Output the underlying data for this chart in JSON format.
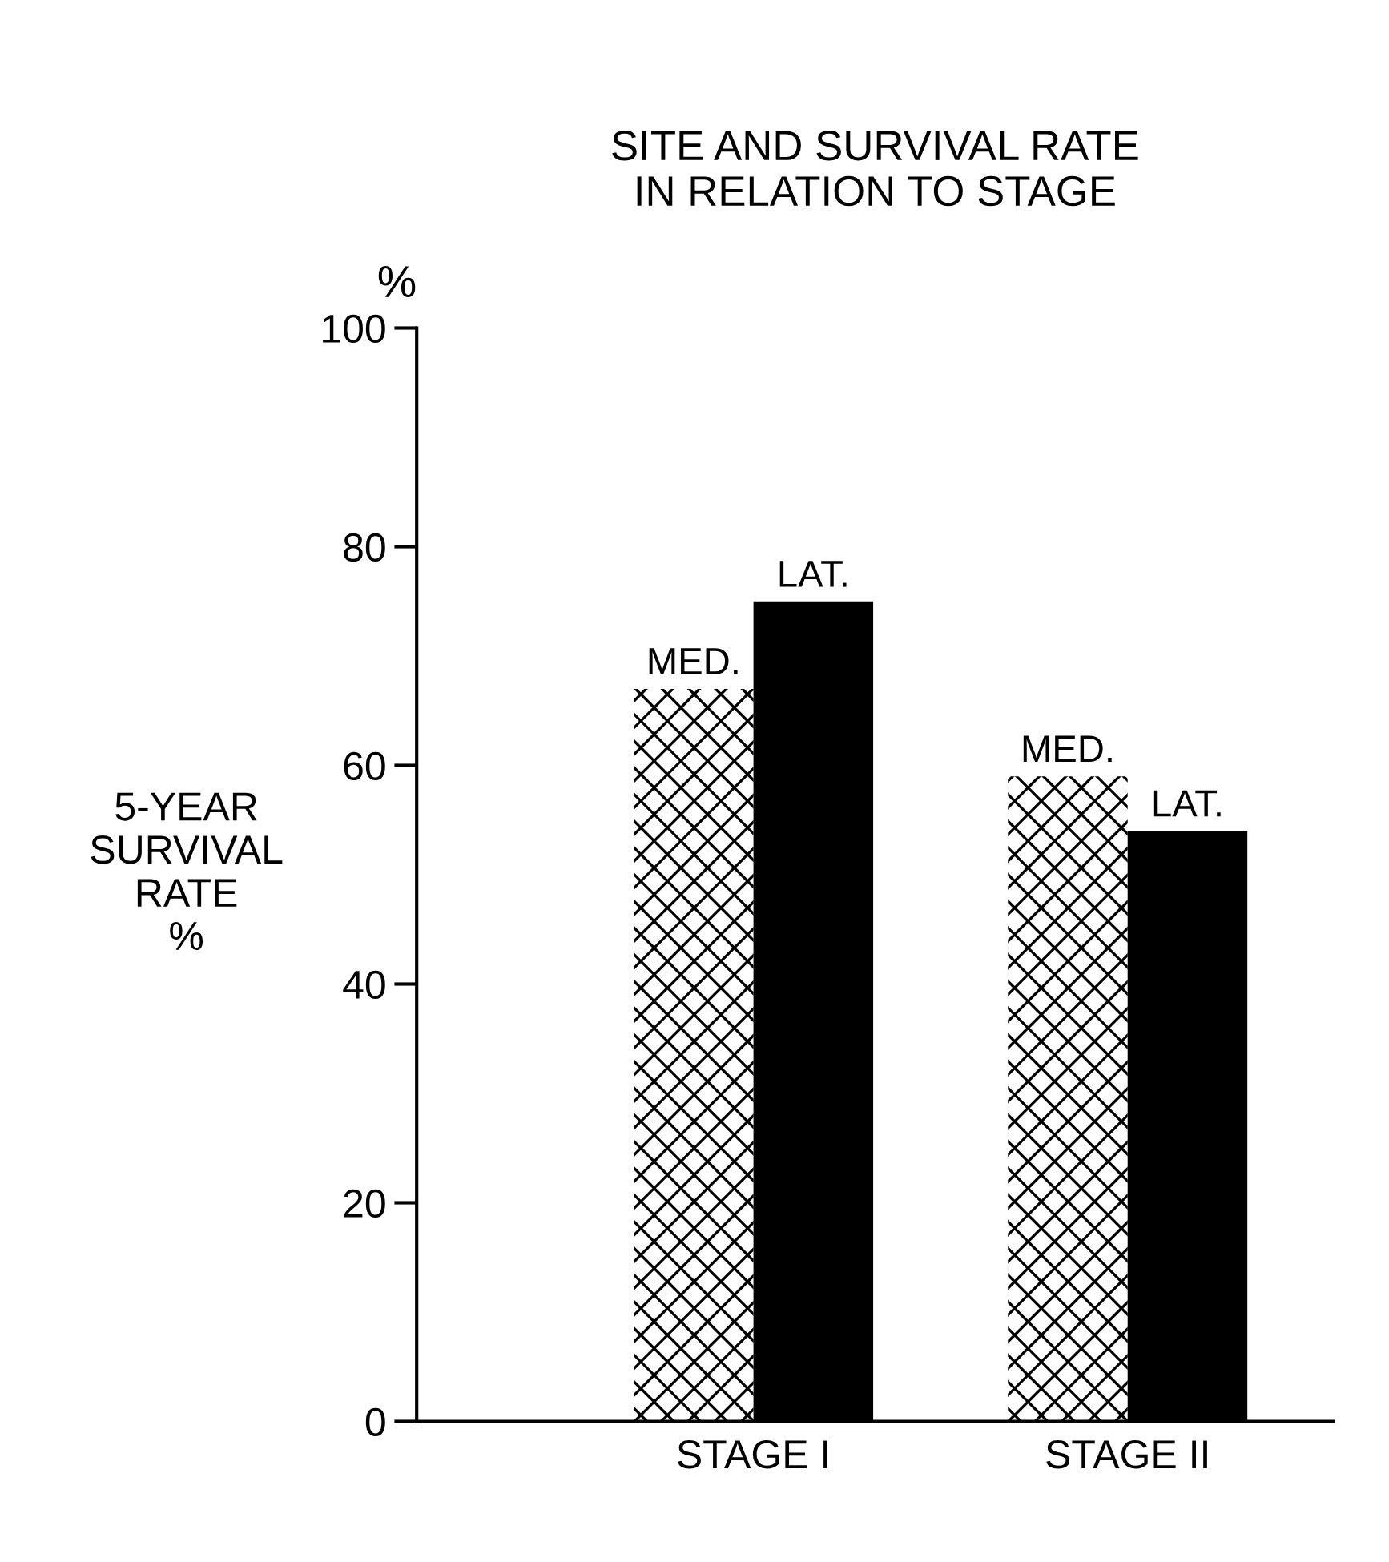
{
  "chart_data": {
    "type": "bar",
    "title": "SITE AND SURVIVAL RATE\nIN RELATION TO STAGE",
    "ylabel": "5-YEAR\nSURVIVAL\nRATE\n%",
    "annotations": [
      "%"
    ],
    "categories": [
      "STAGE I",
      "STAGE II"
    ],
    "series": [
      {
        "name": "MED.",
        "color": "#ffffff",
        "values": [
          67,
          59
        ]
      },
      {
        "name": "LAT.",
        "color": "#000000",
        "values": [
          75,
          54
        ]
      }
    ],
    "ylim": [
      0,
      100
    ],
    "yticks": [
      0,
      20,
      40,
      60,
      80,
      100
    ],
    "grid": false,
    "legend": false
  }
}
